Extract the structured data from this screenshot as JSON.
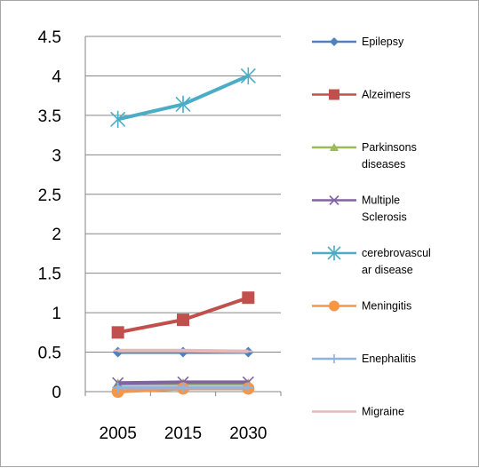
{
  "chart_data": {
    "type": "line",
    "categories": [
      "2005",
      "2015",
      "2030"
    ],
    "ylim": [
      0,
      4.5
    ],
    "yticks": [
      "0",
      "0.5",
      "1",
      "1.5",
      "2",
      "2.5",
      "3",
      "3.5",
      "4",
      "4.5"
    ],
    "grid": "horizontal",
    "legend_position": "right",
    "series": [
      {
        "name": "Epilepsy",
        "legend_lines": [
          "Epilepsy"
        ],
        "values": [
          0.5,
          0.5,
          0.5
        ],
        "color": "#4f81bd",
        "marker": "diamond"
      },
      {
        "name": "Alzeimers",
        "legend_lines": [
          "Alzeimers"
        ],
        "values": [
          0.75,
          0.91,
          1.19
        ],
        "color": "#c0504d",
        "marker": "square"
      },
      {
        "name": "Parkinsons diseases",
        "legend_lines": [
          "Parkinsons",
          "diseases"
        ],
        "values": [
          0.1,
          0.1,
          0.1
        ],
        "color": "#9bbb59",
        "marker": "triangle"
      },
      {
        "name": "Multiple Sclerosis",
        "legend_lines": [
          "Multiple",
          "Sclerosis"
        ],
        "values": [
          0.11,
          0.12,
          0.12
        ],
        "color": "#8064a2",
        "marker": "x"
      },
      {
        "name": "cerebrovascular disease",
        "legend_lines": [
          "cerebrovascul",
          "ar disease"
        ],
        "values": [
          3.45,
          3.64,
          4.0
        ],
        "color": "#4bacc6",
        "marker": "star"
      },
      {
        "name": "Meningitis",
        "legend_lines": [
          "Meningitis"
        ],
        "values": [
          0.0,
          0.04,
          0.04
        ],
        "color": "#f79646",
        "marker": "circle"
      },
      {
        "name": "Enephalitis",
        "legend_lines": [
          "Enephalitis"
        ],
        "values": [
          0.05,
          0.05,
          0.05
        ],
        "color": "#8eb4e3",
        "marker": "plus"
      },
      {
        "name": "Migraine",
        "legend_lines": [
          "Migraine"
        ],
        "values": [
          0.52,
          0.52,
          0.51
        ],
        "color": "#e6b9b8",
        "marker": "dash"
      }
    ]
  }
}
